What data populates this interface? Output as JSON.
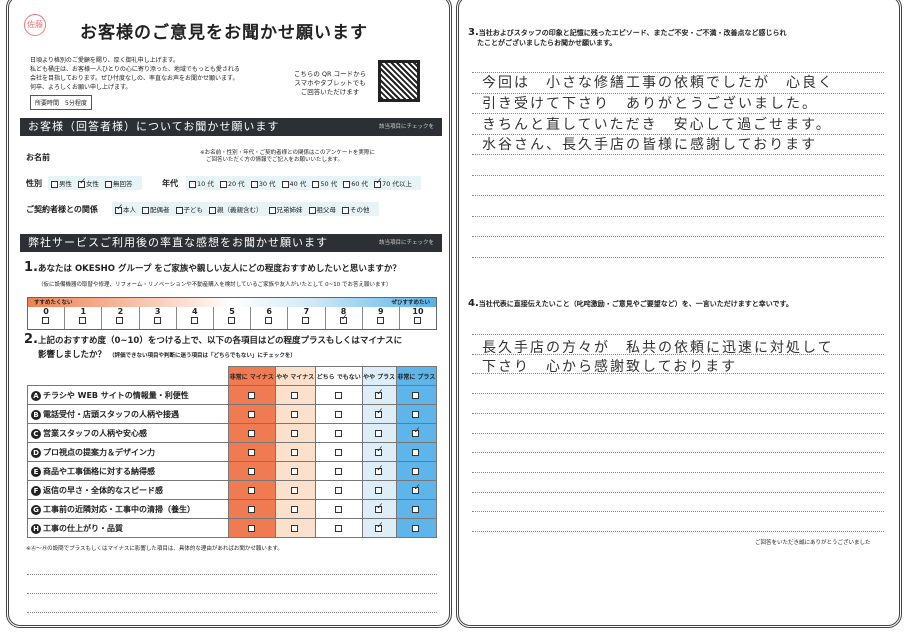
{
  "header": {
    "stamp": "佐藤",
    "title": "お客様のご意見をお聞かせ願います",
    "intro": [
      "日頃より格別のご愛顧を賜り、厚く御礼申し上げます。",
      "私ども桶庄は、お客様一人ひとりの心に寄り添った、地域でもっとも愛される",
      "会社を目指しております。ぜひ忖度なしの、率直なお声をお聞かせ願います。",
      "何卒、よろしくお願い申し上げます。"
    ],
    "time": "所要時間　5分程度",
    "qr_text": [
      "こちらの QR コードから",
      "スマホやタブレットでも",
      "ご回答いただけます"
    ]
  },
  "respondent": {
    "bar": "お客様（回答者様）についてお聞かせ願います",
    "bar_note": "該当項目にチェックを",
    "name_label": "お名前",
    "name_note": [
      "※お名前・性別・年代・ご契約者様との関係はこのアンケートを実際に",
      "ご回答いただく方の情報でご記入をお願いいたします。"
    ],
    "gender_label": "性別",
    "gender": [
      {
        "label": "男性",
        "checked": false
      },
      {
        "label": "女性",
        "checked": true
      },
      {
        "label": "無回答",
        "checked": false
      }
    ],
    "age_label": "年代",
    "age": [
      {
        "label": "10 代",
        "checked": false
      },
      {
        "label": "20 代",
        "checked": false
      },
      {
        "label": "30 代",
        "checked": false
      },
      {
        "label": "40 代",
        "checked": false
      },
      {
        "label": "50 代",
        "checked": false
      },
      {
        "label": "60 代",
        "checked": false
      },
      {
        "label": "70 代以上",
        "checked": true
      }
    ],
    "relation_label": "ご契約者様との関係",
    "relation": [
      {
        "label": "本人",
        "checked": true
      },
      {
        "label": "配偶者",
        "checked": false
      },
      {
        "label": "子ども",
        "checked": false
      },
      {
        "label": "親（義親含む）",
        "checked": false
      },
      {
        "label": "兄弟姉妹",
        "checked": false
      },
      {
        "label": "祖父母",
        "checked": false
      },
      {
        "label": "その他",
        "checked": false
      }
    ]
  },
  "service": {
    "bar": "弊社サービスご利用後の率直な感想をお聞かせ願います",
    "bar_note": "該当項目にチェックを",
    "q1": {
      "num": "1.",
      "text": "あなたは OKESHO グループ をご家族や親しい友人にどの程度おすすめしたいと思いますか？",
      "sub": "（仮に設備機器の取替や修理、リフォーム・リノベーションや不動産購入を検討しているご家族や友人がいたとして 0~10 でお答え願います）",
      "low": "すすめたくない",
      "high": "ぜひすすめたい",
      "scale": [
        "0",
        "1",
        "2",
        "3",
        "4",
        "5",
        "6",
        "7",
        "8",
        "9",
        "10"
      ],
      "selected": "8"
    },
    "q2": {
      "num": "2.",
      "text": "上記のおすすめ度（0~10）をつける上で、以下の各項目はどの程度プラスもしくはマイナスに",
      "text2": "影響しましたか？",
      "sub": "（評価できない項目や判断に迷う項目は「どちらでもない」にチェックを）",
      "columns": [
        "非常に マイナス",
        "やや マイナス",
        "どちら でもない",
        "やや プラス",
        "非常に プラス"
      ],
      "rows": [
        {
          "letter": "A",
          "label": "チラシや WEB サイトの情報量・利便性",
          "rating": 3
        },
        {
          "letter": "B",
          "label": "電話受付・店頭スタッフの人柄や接遇",
          "rating": 3
        },
        {
          "letter": "C",
          "label": "営業スタッフの人柄や安心感",
          "rating": 4
        },
        {
          "letter": "D",
          "label": "プロ視点の提案力＆デザイン力",
          "rating": 3
        },
        {
          "letter": "E",
          "label": "商品や工事価格に対する納得感",
          "rating": 3
        },
        {
          "letter": "F",
          "label": "返信の早さ・全体的なスピード感",
          "rating": 4
        },
        {
          "letter": "G",
          "label": "工事前の近隣対応・工事中の清掃（養生）",
          "rating": 3
        },
        {
          "letter": "H",
          "label": "工事の仕上がり・品質",
          "rating": 3
        }
      ],
      "footnote": "※Ⓐ～Ⓗの設問でプラスもしくはマイナスに影響した項目は、具体的な理由があればお聞かせ願います。"
    }
  },
  "q3": {
    "num": "3.",
    "text": "当社およびスタッフの印象と記憶に残ったエピソード、またご不安・ご不満・改善点など感じられ",
    "text2": "たことがございましたらお聞かせ願います。",
    "answer": [
      "今回は　小さな修繕工事の依頼でしたが　心良く",
      "引き受けて下さり　ありがとうございました。",
      "きちんと直していただき　安心して過ごせます。",
      "水谷さん、長久手店の皆様に感謝しております"
    ]
  },
  "q4": {
    "num": "4.",
    "text": "当社代表に直接伝えたいこと（叱咤激励・ご意見やご要望など）を、一言いただけますと幸いです。",
    "answer": [
      "長久手店の方々が　私共の依頼に迅速に対処して",
      "下さり　心から感謝致しております"
    ]
  },
  "footer": "ご回答をいただき誠にありがとうございました"
}
